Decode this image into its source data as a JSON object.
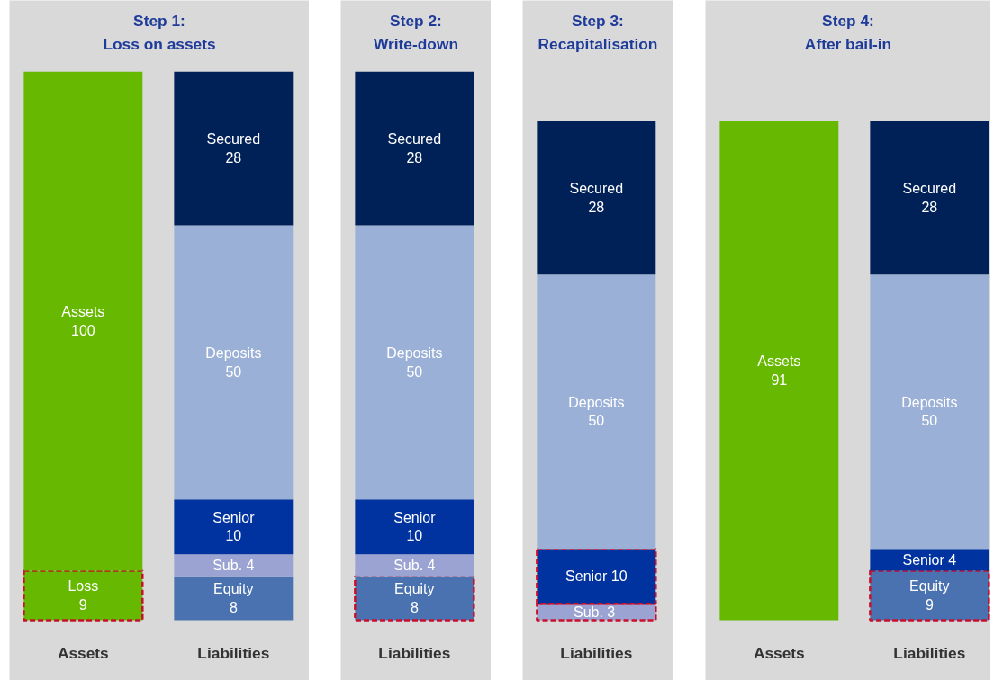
{
  "chart_data": [
    {
      "type": "bar",
      "title": "Step 1:\nLoss on assets",
      "stacked": true,
      "data_labels": true,
      "categories": [
        "Assets",
        "Liabilities"
      ],
      "series": [
        {
          "color": "#66b800",
          "values": [
            9,
            null
          ],
          "value_labels": [
            "Loss\n9",
            null
          ],
          "line_style": "dashed"
        },
        {
          "color": "#66b800",
          "values": [
            91,
            null
          ],
          "value_labels": [
            "Assets\n100",
            null
          ]
        },
        {
          "color": "#4a72b0",
          "values": [
            null,
            8
          ],
          "value_labels": [
            null,
            "Equity\n8"
          ]
        },
        {
          "color": "#9aa3d1",
          "values": [
            null,
            4
          ],
          "value_labels": [
            null,
            "Sub.\n4"
          ]
        },
        {
          "color": "#0033a0",
          "values": [
            null,
            10
          ],
          "value_labels": [
            null,
            "Senior\n10"
          ]
        },
        {
          "color": "#9bb0d6",
          "values": [
            null,
            50
          ],
          "value_labels": [
            null,
            "Deposits\n50"
          ]
        },
        {
          "color": "#002157",
          "values": [
            null,
            28
          ],
          "value_labels": [
            null,
            "Secured\n28"
          ]
        }
      ]
    },
    {
      "type": "bar",
      "title": "Step 2:\nWrite-down",
      "stacked": true,
      "data_labels": true,
      "categories": [
        "Liabilities"
      ],
      "series": [
        {
          "color": "#4a72b0",
          "values": [
            8
          ],
          "value_labels": [
            "Equity\n8"
          ],
          "line_style": "dashed"
        },
        {
          "color": "#9aa3d1",
          "values": [
            4
          ],
          "value_labels": [
            "Sub.\n4"
          ]
        },
        {
          "color": "#0033a0",
          "values": [
            10
          ],
          "value_labels": [
            "Senior\n10"
          ]
        },
        {
          "color": "#9bb0d6",
          "values": [
            50
          ],
          "value_labels": [
            "Deposits\n50"
          ]
        },
        {
          "color": "#002157",
          "values": [
            28
          ],
          "value_labels": [
            "Secured\n28"
          ]
        }
      ]
    },
    {
      "type": "bar",
      "title": "Step 3:\nRecapitalisation",
      "stacked": true,
      "data_labels": true,
      "categories": [
        "Liabilities"
      ],
      "series": [
        {
          "color": "#9aa3d1",
          "values": [
            3
          ],
          "value_labels": [
            "Sub.  3"
          ],
          "line_style": "dashed"
        },
        {
          "color": "#0033a0",
          "values": [
            10
          ],
          "value_labels": [
            "Senior 10"
          ],
          "line_style": "dashed"
        },
        {
          "color": "#9bb0d6",
          "values": [
            50
          ],
          "value_labels": [
            "Deposits\n50"
          ]
        },
        {
          "color": "#002157",
          "values": [
            28
          ],
          "value_labels": [
            "Secured\n28"
          ]
        }
      ]
    },
    {
      "type": "bar",
      "title": "Step 4:\nAfter bail-in",
      "stacked": true,
      "data_labels": true,
      "categories": [
        "Assets",
        "Liabilities"
      ],
      "series": [
        {
          "color": "#66b800",
          "values": [
            91,
            null
          ],
          "value_labels": [
            "Assets\n91",
            null
          ]
        },
        {
          "color": "#4a72b0",
          "values": [
            null,
            9
          ],
          "value_labels": [
            null,
            "Equity\n9"
          ],
          "line_style": "dashed"
        },
        {
          "color": "#0033a0",
          "values": [
            null,
            4
          ],
          "value_labels": [
            null,
            "Senior 4"
          ]
        },
        {
          "color": "#9bb0d6",
          "values": [
            null,
            50
          ],
          "value_labels": [
            null,
            "Deposits\n50"
          ]
        },
        {
          "color": "#002157",
          "values": [
            null,
            28
          ],
          "value_labels": [
            null,
            "Secured\n28"
          ]
        }
      ]
    }
  ]
}
